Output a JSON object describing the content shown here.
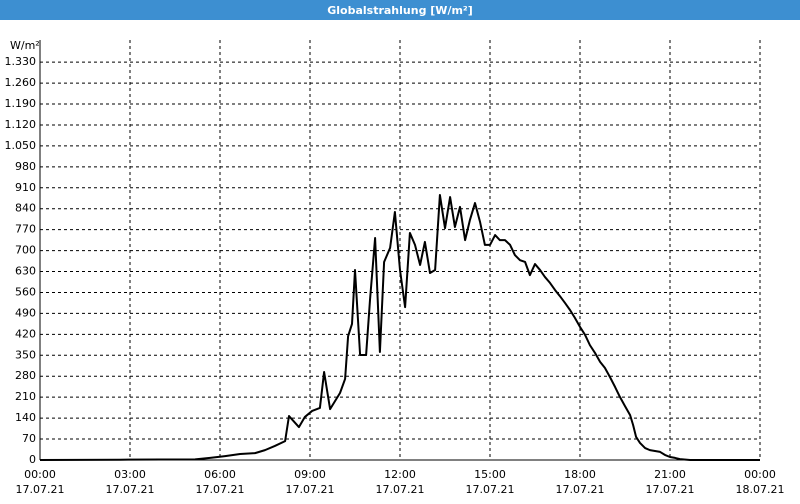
{
  "chart_data": {
    "type": "line",
    "title": "Globalstrahlung [W/m²]",
    "y_label": "W/m²",
    "x": [
      0,
      2.67,
      5.17,
      5.67,
      6.17,
      6.67,
      7.17,
      7.5,
      7.83,
      8.17,
      8.3,
      8.63,
      8.83,
      9.07,
      9.33,
      9.47,
      9.67,
      10,
      10.17,
      10.27,
      10.4,
      10.5,
      10.67,
      10.87,
      11,
      11.17,
      11.33,
      11.47,
      11.67,
      11.83,
      12,
      12.17,
      12.33,
      12.5,
      12.67,
      12.83,
      13,
      13.17,
      13.33,
      13.5,
      13.67,
      13.83,
      14,
      14.17,
      14.33,
      14.5,
      14.67,
      14.83,
      15,
      15.17,
      15.33,
      15.5,
      15.67,
      15.83,
      16,
      16.17,
      16.33,
      16.5,
      16.67,
      16.83,
      17,
      17.17,
      17.33,
      17.5,
      17.67,
      17.83,
      18,
      18.17,
      18.33,
      18.5,
      18.67,
      18.83,
      19,
      19.17,
      19.33,
      19.5,
      19.67,
      19.77,
      19.87,
      20,
      20.17,
      20.33,
      20.5,
      20.67,
      20.83,
      21,
      21.17,
      21.33,
      21.67,
      24
    ],
    "series": [
      {
        "name": "Globalstrahlung",
        "color": "#000000",
        "values": [
          0,
          1,
          2,
          7,
          13,
          20,
          23,
          33,
          47,
          63,
          147,
          110,
          144,
          164,
          174,
          294,
          170,
          224,
          271,
          414,
          455,
          635,
          351,
          351,
          535,
          742,
          361,
          662,
          709,
          829,
          635,
          511,
          759,
          719,
          652,
          729,
          625,
          635,
          886,
          775,
          879,
          779,
          846,
          735,
          802,
          859,
          795,
          719,
          719,
          752,
          735,
          735,
          719,
          685,
          668,
          662,
          618,
          655,
          635,
          612,
          592,
          568,
          548,
          525,
          501,
          475,
          445,
          418,
          384,
          358,
          328,
          308,
          277,
          244,
          211,
          180,
          150,
          117,
          77,
          57,
          40,
          33,
          30,
          27,
          17,
          10,
          7,
          3,
          0,
          0
        ]
      }
    ],
    "xlim": [
      0,
      24
    ],
    "xticks": [
      {
        "value": 0,
        "label": [
          "00:00",
          "17.07.21"
        ]
      },
      {
        "value": 3,
        "label": [
          "03:00",
          "17.07.21"
        ]
      },
      {
        "value": 6,
        "label": [
          "06:00",
          "17.07.21"
        ]
      },
      {
        "value": 9,
        "label": [
          "09:00",
          "17.07.21"
        ]
      },
      {
        "value": 12,
        "label": [
          "12:00",
          "17.07.21"
        ]
      },
      {
        "value": 15,
        "label": [
          "15:00",
          "17.07.21"
        ]
      },
      {
        "value": 18,
        "label": [
          "18:00",
          "17.07.21"
        ]
      },
      {
        "value": 21,
        "label": [
          "21:00",
          "17.07.21"
        ]
      },
      {
        "value": 24,
        "label": [
          "00:00",
          "18.07.21"
        ]
      }
    ],
    "ylim": [
      0,
      1404
    ],
    "yticks": [
      0,
      70,
      140,
      210,
      280,
      350,
      420,
      490,
      560,
      630,
      700,
      770,
      840,
      910,
      980,
      {
        "value": 1050,
        "label": "1.050"
      },
      {
        "value": 1120,
        "label": "1.120"
      },
      {
        "value": 1190,
        "label": "1.190"
      },
      {
        "value": 1260,
        "label": "1.260"
      },
      {
        "value": 1330,
        "label": "1.330"
      }
    ],
    "grid": true
  }
}
